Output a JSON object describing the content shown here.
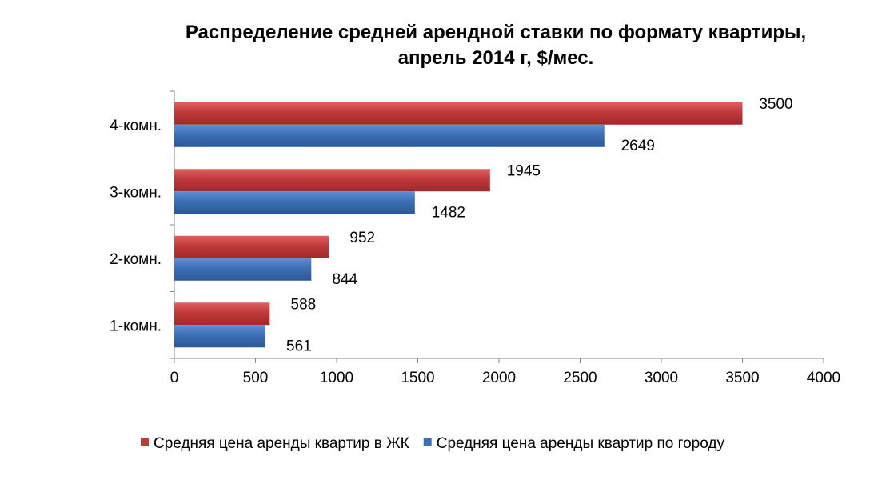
{
  "chart_data": {
    "type": "bar",
    "orientation": "horizontal",
    "title_lines": [
      "Распределение средней арендной ставки по формату квартиры,",
      "апрель 2014 г, $/мес."
    ],
    "categories": [
      "1-комн.",
      "2-комн.",
      "3-комн.",
      "4-комн."
    ],
    "series": [
      {
        "name": "Средняя цена аренды квартир в ЖК",
        "color": "#c0393b",
        "values": [
          588,
          952,
          1945,
          3500
        ]
      },
      {
        "name": "Средняя цена аренды квартир по городу",
        "color": "#3c6fb5",
        "values": [
          561,
          844,
          1482,
          2649
        ]
      }
    ],
    "xlim": [
      0,
      4000
    ],
    "xticks": [
      "0",
      "500",
      "1000",
      "1500",
      "2000",
      "2500",
      "3000",
      "3500",
      "4000"
    ],
    "grid": false,
    "legend_position": "bottom"
  }
}
